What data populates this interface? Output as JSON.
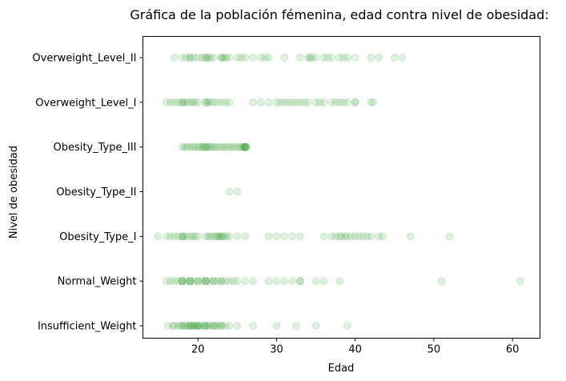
{
  "chart_data": {
    "type": "scatter",
    "title": "Gráfica de la población fémenina, edad contra nivel de obesidad:",
    "xlabel": "Edad",
    "ylabel": "Nivel de obesidad",
    "xlim": [
      13,
      63.5
    ],
    "x_ticks": [
      20,
      30,
      40,
      50,
      60
    ],
    "categories": [
      "Insufficient_Weight",
      "Normal_Weight",
      "Obesity_Type_I",
      "Obesity_Type_II",
      "Obesity_Type_III",
      "Overweight_Level_I",
      "Overweight_Level_II"
    ],
    "grid": false,
    "marker_color": "#008000",
    "marker_alpha": 0.12,
    "series": [
      {
        "category": "Insufficient_Weight",
        "x": [
          16.2,
          16.8,
          17,
          17.5,
          17.8,
          18,
          18.2,
          18.5,
          18.7,
          19,
          19,
          19.2,
          19.5,
          19.5,
          19.8,
          20,
          20,
          20.2,
          20.5,
          20.8,
          21,
          21,
          21.3,
          21.6,
          22,
          22,
          22.3,
          22.6,
          23,
          23,
          23.5,
          24,
          25,
          27,
          30,
          32.5,
          35,
          39
        ]
      },
      {
        "category": "Normal_Weight",
        "x": [
          16,
          16.5,
          17,
          17.5,
          18,
          18,
          18,
          18.5,
          19,
          19,
          19,
          19.5,
          20,
          20,
          20.5,
          21,
          21,
          21,
          21.5,
          22,
          22,
          22.5,
          23,
          23,
          23.5,
          24,
          24.5,
          25,
          26,
          27,
          29,
          30,
          31,
          32,
          33,
          33,
          35,
          36,
          38,
          51,
          61
        ]
      },
      {
        "category": "Obesity_Type_I",
        "x": [
          14.9,
          16,
          16.5,
          17,
          17.5,
          18,
          18,
          18.2,
          18.5,
          19,
          19.3,
          19.6,
          20,
          21,
          21.3,
          21.6,
          22,
          22.3,
          22.5,
          22.7,
          23,
          23,
          23.3,
          23.6,
          24,
          25,
          26,
          29,
          30,
          31,
          32,
          33,
          36,
          37,
          37.5,
          38,
          38.3,
          38.7,
          39,
          39.5,
          40,
          40.5,
          41,
          41.5,
          42,
          43,
          43.5,
          47,
          52
        ]
      },
      {
        "category": "Obesity_Type_II",
        "x": [
          24,
          25
        ]
      },
      {
        "category": "Obesity_Type_III",
        "x": [
          18,
          18.3,
          18.6,
          19,
          19.3,
          19.6,
          20,
          20.2,
          20.5,
          20.7,
          21,
          21,
          21.2,
          21.5,
          21.7,
          22,
          22.3,
          22.6,
          23,
          23.3,
          23.6,
          24,
          24.3,
          24.6,
          25,
          25.3,
          25.6,
          25.8,
          26,
          26,
          26,
          26.1,
          26.2
        ]
      },
      {
        "category": "Overweight_Level_I",
        "x": [
          16,
          16.5,
          17,
          17.5,
          18,
          18,
          18.3,
          18.6,
          19,
          19.3,
          19.6,
          20,
          21,
          21,
          21.3,
          21.6,
          22,
          22.5,
          23,
          23.5,
          24,
          27,
          28,
          29,
          30,
          30.5,
          31,
          31.5,
          32,
          32.5,
          33,
          33.5,
          34,
          35,
          35.5,
          36,
          37,
          37.5,
          38,
          38.5,
          39,
          40,
          40,
          42,
          42.3
        ]
      },
      {
        "category": "Overweight_Level_II",
        "x": [
          17,
          18,
          18.5,
          19,
          19,
          19.5,
          20,
          20.5,
          21,
          21,
          21.3,
          21.6,
          22,
          23,
          23,
          23.3,
          23.6,
          24,
          25,
          25.5,
          26,
          27,
          28,
          28.5,
          29,
          31,
          33,
          34,
          34.2,
          34.5,
          35,
          36,
          36.5,
          37,
          38,
          38.5,
          39,
          40,
          42,
          43,
          45,
          46
        ]
      }
    ]
  }
}
